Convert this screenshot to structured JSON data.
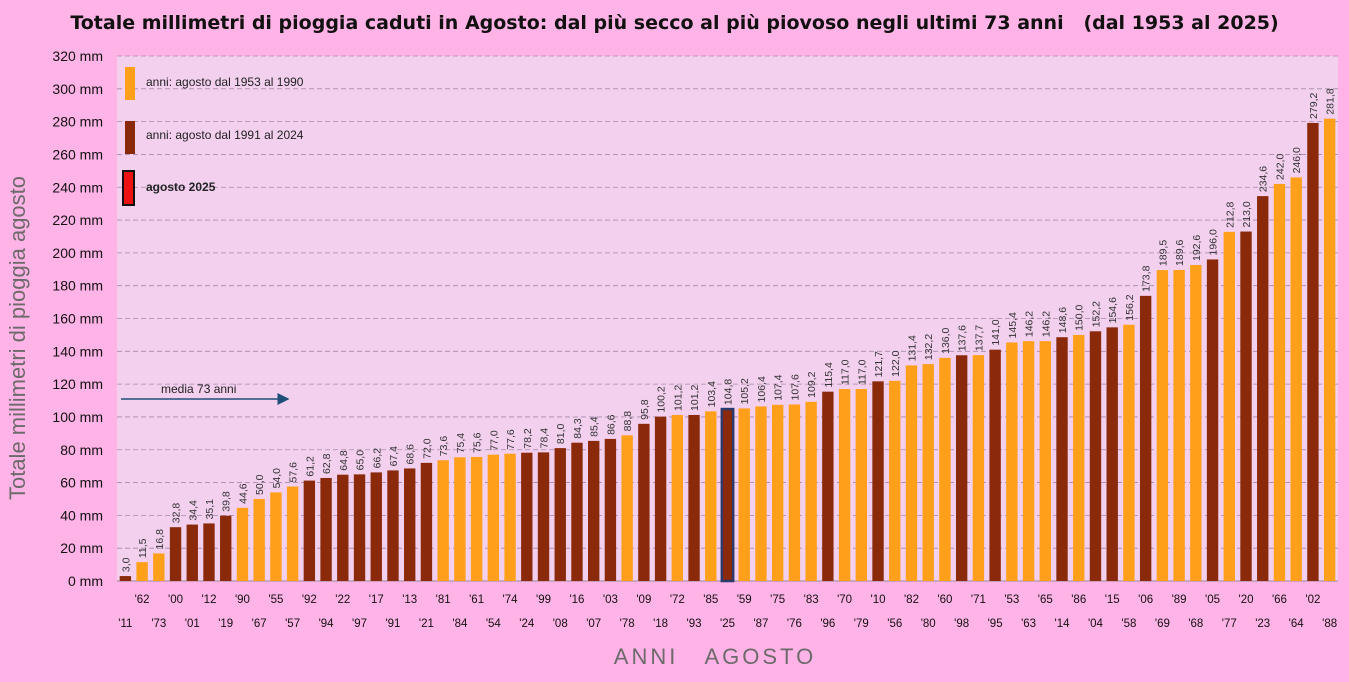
{
  "title": "Totale millimetri di pioggia caduti in Agosto: dal più secco al più piovoso negli ultimi 73 anni   (dal 1953 al 2025)",
  "colors": {
    "background": "#ffb3e6",
    "plot_area": "#f2d0ee",
    "period_1953_1990": "#ff9f1a",
    "period_1991_2024": "#8b2a0a",
    "year_2025": "#8b2a0a",
    "year_2025_border": "#2a3a6a",
    "legend_2025": "#ee1111",
    "grid": "#a58aa8",
    "mean_arrow": "#1f4e79"
  },
  "chart_data": {
    "type": "bar",
    "title": "Totale millimetri di pioggia caduti in Agosto: dal più secco al più piovoso negli ultimi 73 anni   (dal 1953 al 2025)",
    "xlabel": "ANNI   AGOSTO",
    "ylabel": "Totale  millimetri  di  pioggia  agosto",
    "ylim": [
      0,
      320
    ],
    "ytick_step": 20,
    "ytick_labels": [
      "0 mm",
      "20 mm",
      "40 mm",
      "60 mm",
      "80 mm",
      "100 mm",
      "120 mm",
      "140 mm",
      "160 mm",
      "180 mm",
      "200 mm",
      "220 mm",
      "240 mm",
      "260 mm",
      "280 mm",
      "300 mm",
      "320 mm"
    ],
    "grid": true,
    "categories": [
      "'11",
      "'62",
      "'73",
      "'00",
      "'01",
      "'12",
      "'19",
      "'90",
      "'67",
      "'55",
      "'57",
      "'92",
      "'94",
      "'22",
      "'97",
      "'17",
      "'91",
      "'13",
      "'21",
      "'81",
      "'84",
      "'61",
      "'54",
      "'74",
      "'24",
      "'99",
      "'08",
      "'16",
      "'07",
      "'03",
      "'78",
      "'09",
      "'18",
      "'72",
      "'93",
      "'85",
      "'25",
      "'59",
      "'87",
      "'75",
      "'76",
      "'83",
      "'96",
      "'70",
      "'79",
      "'10",
      "'56",
      "'82",
      "'80",
      "'60",
      "'98",
      "'71",
      "'95",
      "'53",
      "'63",
      "'65",
      "'14",
      "'86",
      "'04",
      "'15",
      "'58",
      "'06",
      "'69",
      "'89",
      "'68",
      "'05",
      "'77",
      "'20",
      "'23",
      "'66",
      "'64",
      "'02",
      "'88"
    ],
    "values": [
      3.0,
      11.5,
      16.8,
      32.8,
      34.4,
      35.1,
      39.8,
      44.6,
      50.0,
      54.0,
      57.6,
      61.2,
      62.8,
      64.8,
      65.0,
      66.2,
      67.4,
      68.6,
      72.0,
      73.6,
      75.4,
      75.6,
      77.0,
      77.6,
      78.2,
      78.4,
      81.0,
      84.3,
      85.4,
      86.6,
      88.8,
      95.8,
      100.2,
      101.2,
      101.2,
      103.4,
      104.8,
      105.2,
      106.4,
      107.4,
      107.6,
      109.2,
      115.4,
      117.0,
      117.0,
      121.7,
      122.0,
      131.4,
      132.2,
      136.0,
      137.6,
      137.7,
      141.0,
      145.4,
      146.2,
      146.2,
      148.6,
      150.0,
      152.2,
      154.6,
      156.2,
      173.8,
      189.5,
      189.6,
      192.6,
      196.0,
      212.8,
      213.0,
      234.6,
      242.0,
      246.0,
      279.2,
      281.8
    ],
    "value_labels": [
      "3,0",
      "11,5",
      "16,8",
      "32,8",
      "34,4",
      "35,1",
      "39,8",
      "44,6",
      "50,0",
      "54,0",
      "57,6",
      "61,2",
      "62,8",
      "64,8",
      "65,0",
      "66,2",
      "67,4",
      "68,6",
      "72,0",
      "73,6",
      "75,4",
      "75,6",
      "77,0",
      "77,6",
      "78,2",
      "78,4",
      "81,0",
      "84,3",
      "85,4",
      "86,6",
      "88,8",
      "95,8",
      "100,2",
      "101,2",
      "101,2",
      "103,4",
      "104,8",
      "105,2",
      "106,4",
      "107,4",
      "107,6",
      "109,2",
      "115,4",
      "117,0",
      "117,0",
      "121,7",
      "122,0",
      "131,4",
      "132,2",
      "136,0",
      "137,6",
      "137,7",
      "141,0",
      "145,4",
      "146,2",
      "146,2",
      "148,6",
      "150,0",
      "152,2",
      "154,6",
      "156,2",
      "173,8",
      "189,5",
      "189,6",
      "192,6",
      "196,0",
      "212,8",
      "213,0",
      "234,6",
      "242,0",
      "246,0",
      "279,2",
      "281,8"
    ],
    "legend": [
      {
        "label": "anni:  agosto  dal 1953 al 1990",
        "group": "period_1953_1990"
      },
      {
        "label": "anni:  agosto  dal 1991 al 2024",
        "group": "period_1991_2024"
      },
      {
        "label": "agosto 2025",
        "group": "year_2025"
      }
    ],
    "legend_position": "top-left",
    "annotation": {
      "text": "media 73 anni",
      "value": 111.5
    }
  }
}
